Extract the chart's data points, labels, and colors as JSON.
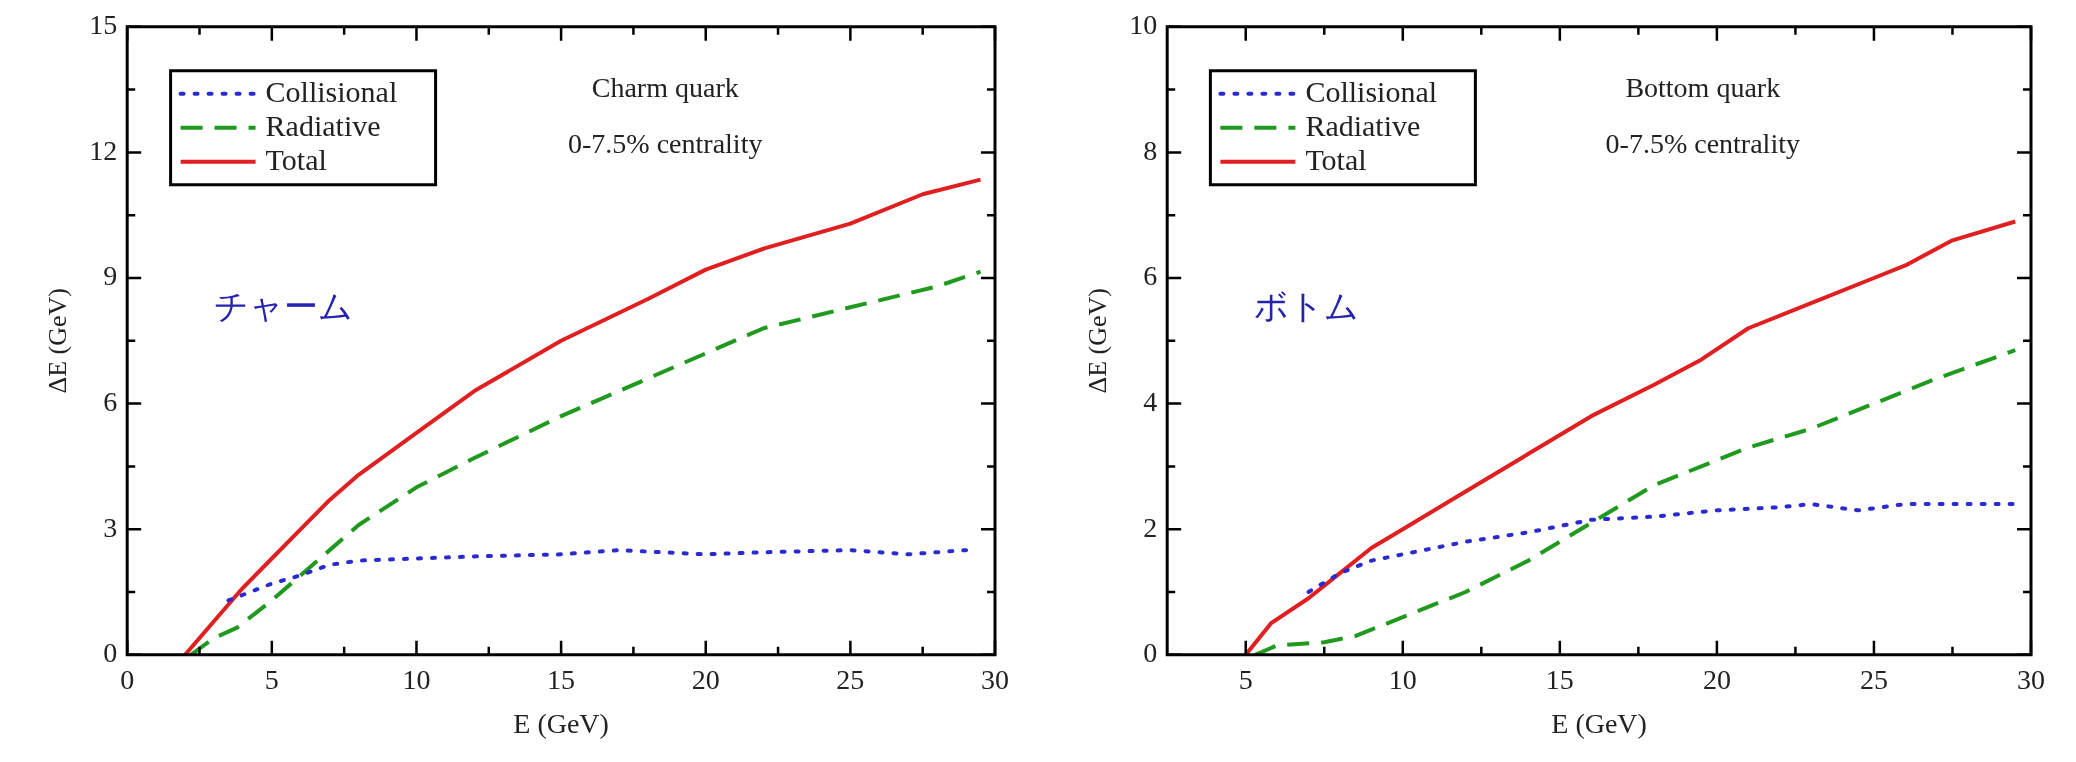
{
  "chart_data": [
    {
      "type": "line",
      "xlabel": "E (GeV)",
      "ylabel": "ΔE (GeV)",
      "annotations": [
        "Charm quark",
        "0-7.5% centrality",
        "チャーム"
      ],
      "legend": "top left",
      "marker": "none",
      "xlim": [
        0,
        30
      ],
      "xticks": [
        0,
        {
          "value": 2.5,
          "label": null
        },
        5,
        {
          "value": 7.5,
          "label": null
        },
        10,
        {
          "value": 12.5,
          "label": null
        },
        15,
        {
          "value": 17.5,
          "label": null
        },
        20,
        {
          "value": 22.5,
          "label": null
        },
        25,
        {
          "value": 27.5,
          "label": null
        },
        30
      ],
      "ylim": [
        0,
        15
      ],
      "yticks": [
        0,
        {
          "value": 1.5,
          "label": null
        },
        3,
        {
          "value": 4.5,
          "label": null
        },
        6,
        {
          "value": 7.5,
          "label": null
        },
        9,
        {
          "value": 10.5,
          "label": null
        },
        12,
        {
          "value": 13.5,
          "label": null
        },
        15
      ],
      "series": [
        {
          "name": "Collisional",
          "color": "#2a2ad0",
          "line_style": "dotted",
          "x": [
            3.5,
            5,
            6,
            7,
            8,
            10,
            12,
            15,
            17,
            20,
            22,
            25,
            27,
            29
          ],
          "values": [
            1.3,
            1.7,
            1.9,
            2.15,
            2.25,
            2.3,
            2.35,
            2.4,
            2.5,
            2.4,
            2.45,
            2.5,
            2.4,
            2.5
          ]
        },
        {
          "name": "Radiative",
          "color": "#1f9a1f",
          "line_style": "dashed",
          "x": [
            2.2,
            3,
            3.8,
            5,
            6,
            7,
            8,
            10,
            12,
            15,
            18,
            20,
            22,
            25,
            28,
            29.5
          ],
          "values": [
            0,
            0.4,
            0.65,
            1.3,
            1.9,
            2.5,
            3.1,
            4.0,
            4.7,
            5.7,
            6.6,
            7.2,
            7.8,
            8.3,
            8.8,
            9.15
          ]
        },
        {
          "name": "Total",
          "color": "#e02020",
          "line_style": "solid",
          "x": [
            2,
            3,
            4,
            5,
            6,
            7,
            8,
            10,
            12,
            15,
            18,
            20,
            22,
            25,
            27.5,
            29.5
          ],
          "values": [
            0,
            0.8,
            1.6,
            2.3,
            3.0,
            3.7,
            4.3,
            5.3,
            6.3,
            7.5,
            8.5,
            9.2,
            9.7,
            10.3,
            11.0,
            11.35
          ]
        }
      ]
    },
    {
      "type": "line",
      "xlabel": "E (GeV)",
      "ylabel": "ΔE (GeV)",
      "annotations": [
        "Bottom quark",
        "0-7.5% centrality",
        "ボトム"
      ],
      "legend": "top left",
      "marker": "none",
      "xlim": [
        2.5,
        30
      ],
      "xticks": [
        5,
        {
          "value": 7.5,
          "label": null
        },
        10,
        {
          "value": 12.5,
          "label": null
        },
        15,
        {
          "value": 17.5,
          "label": null
        },
        20,
        {
          "value": 22.5,
          "label": null
        },
        25,
        {
          "value": 27.5,
          "label": null
        },
        30
      ],
      "ylim": [
        0,
        10
      ],
      "yticks": [
        0,
        {
          "value": 1,
          "label": null
        },
        2,
        {
          "value": 3,
          "label": null
        },
        4,
        {
          "value": 5,
          "label": null
        },
        6,
        {
          "value": 7,
          "label": null
        },
        8,
        {
          "value": 9,
          "label": null
        },
        10
      ],
      "series": [
        {
          "name": "Collisional",
          "color": "#2a2ad0",
          "line_style": "dotted",
          "x": [
            7,
            8,
            9,
            10,
            12,
            14,
            16,
            18,
            20,
            22,
            23,
            24.5,
            26,
            29.5
          ],
          "values": [
            1.0,
            1.3,
            1.5,
            1.6,
            1.8,
            1.95,
            2.15,
            2.2,
            2.3,
            2.35,
            2.4,
            2.3,
            2.4,
            2.4
          ]
        },
        {
          "name": "Radiative",
          "color": "#1f9a1f",
          "line_style": "dashed",
          "x": [
            5.3,
            6,
            7.5,
            8.5,
            10,
            12,
            14,
            15,
            16,
            17,
            18,
            20,
            21,
            23,
            25,
            27,
            29.5
          ],
          "values": [
            0,
            0.15,
            0.2,
            0.3,
            0.6,
            1.0,
            1.5,
            1.8,
            2.1,
            2.4,
            2.7,
            3.1,
            3.3,
            3.6,
            4.0,
            4.4,
            4.85
          ]
        },
        {
          "name": "Total",
          "color": "#e02020",
          "line_style": "solid",
          "x": [
            5,
            5.8,
            7,
            8,
            9,
            10,
            12,
            14,
            16,
            18,
            19.5,
            21,
            23,
            25,
            26,
            27.5,
            29.5
          ],
          "values": [
            0,
            0.5,
            0.9,
            1.3,
            1.7,
            2.0,
            2.6,
            3.2,
            3.8,
            4.3,
            4.7,
            5.2,
            5.6,
            6.0,
            6.2,
            6.6,
            6.9
          ]
        }
      ]
    }
  ]
}
